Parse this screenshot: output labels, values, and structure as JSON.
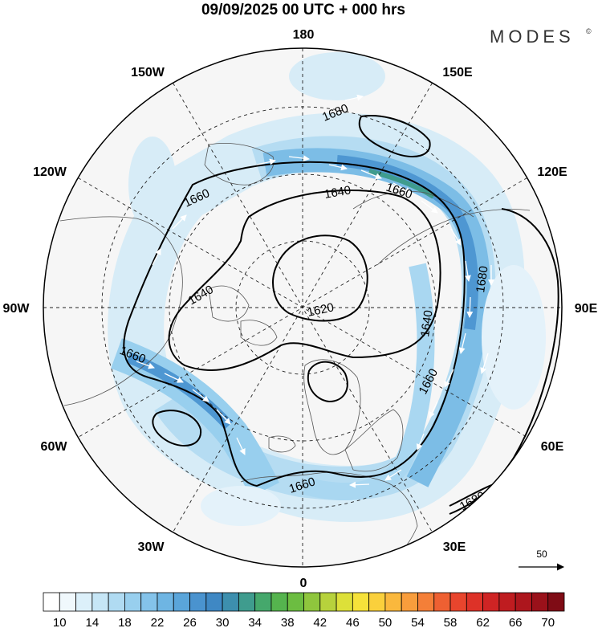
{
  "header": {
    "title": "09/09/2025  00 UTC  + 000 hrs",
    "brand": "MODES",
    "brand_mark": "©"
  },
  "map": {
    "projection": "north-polar-stereographic",
    "longitude_labels": [
      "180",
      "150E",
      "120E",
      "90E",
      "60E",
      "30E",
      "0",
      "30W",
      "60W",
      "90W",
      "120W",
      "150W"
    ],
    "contour_labels": [
      "1680",
      "1660",
      "1660",
      "1640",
      "1640",
      "1620",
      "1640",
      "1680",
      "1660",
      "1660",
      "1660",
      "1680"
    ],
    "vector_reference": {
      "value": "50"
    }
  },
  "colorbar": {
    "tick_labels": [
      "10",
      "14",
      "18",
      "22",
      "26",
      "30",
      "34",
      "38",
      "42",
      "46",
      "50",
      "54",
      "58",
      "62",
      "66",
      "70"
    ],
    "colors": [
      "#ffffff",
      "#f0f8fc",
      "#dcf0fa",
      "#c6e6f6",
      "#b0dbf2",
      "#98cfee",
      "#84c3ea",
      "#6eb5e3",
      "#5aa5da",
      "#4a93cf",
      "#3f88c4",
      "#3d8fae",
      "#3f9c8e",
      "#45a86c",
      "#55b44e",
      "#6cbd41",
      "#8fc63d",
      "#b7d23c",
      "#dde039",
      "#f6e23a",
      "#fad03c",
      "#fab83d",
      "#f89d3c",
      "#f47f38",
      "#ee6032",
      "#e8452d",
      "#dd3228",
      "#cf2424",
      "#bf1c20",
      "#ad161d",
      "#9a111a",
      "#7f0c15"
    ]
  }
}
